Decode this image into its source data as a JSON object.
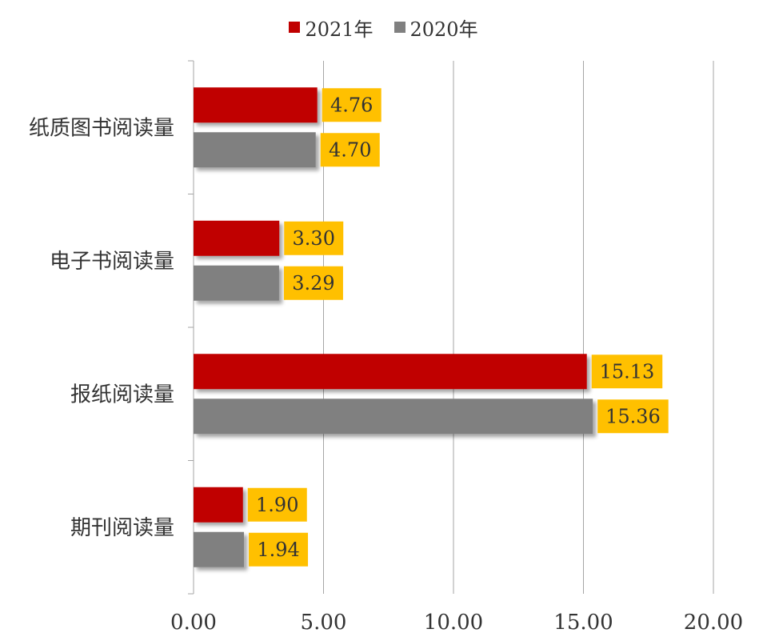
{
  "chart_data": {
    "type": "bar",
    "orientation": "horizontal",
    "categories": [
      "纸质图书阅读量",
      "电子书阅读量",
      "报纸阅读量",
      "期刊阅读量"
    ],
    "series": [
      {
        "name": "2021年",
        "color": "#c00000",
        "values": [
          4.76,
          3.3,
          15.13,
          1.9
        ],
        "labels": [
          "4.76",
          "3.30",
          "15.13",
          "1.90"
        ]
      },
      {
        "name": "2020年",
        "color": "#808080",
        "values": [
          4.7,
          3.29,
          15.36,
          1.94
        ],
        "labels": [
          "4.70",
          "3.29",
          "15.36",
          "1.94"
        ]
      }
    ],
    "xlim": [
      0,
      20
    ],
    "xticks": [
      0,
      5,
      10,
      15,
      20
    ],
    "xtick_labels": [
      "0.00",
      "5.00",
      "10.00",
      "15.00",
      "20.00"
    ],
    "grid": "vertical",
    "legend_position": "top-center",
    "data_label_background": "#ffc000"
  }
}
